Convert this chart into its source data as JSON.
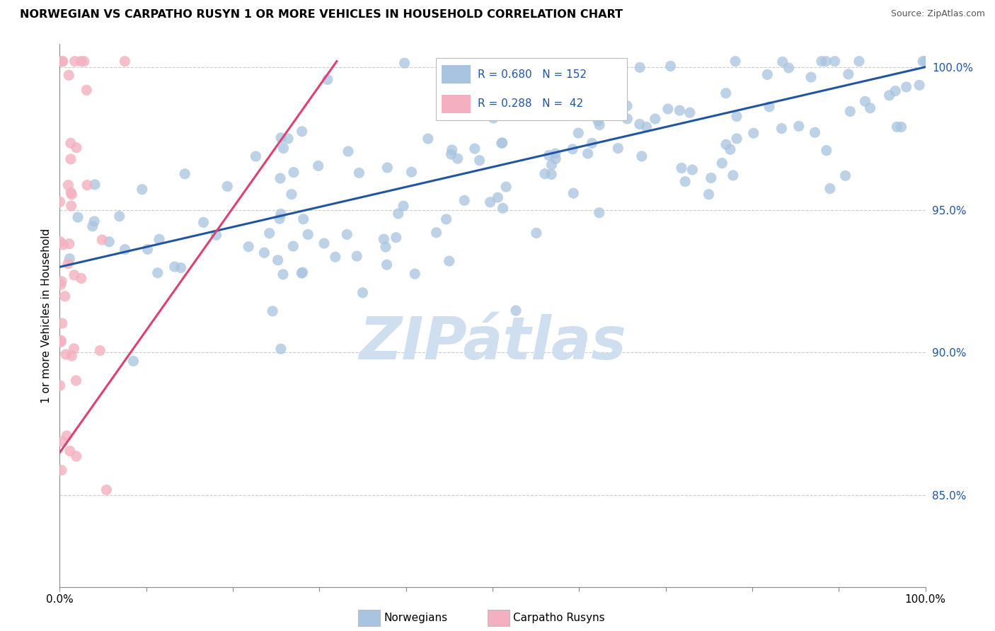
{
  "title": "NORWEGIAN VS CARPATHO RUSYN 1 OR MORE VEHICLES IN HOUSEHOLD CORRELATION CHART",
  "source": "Source: ZipAtlas.com",
  "ylabel": "1 or more Vehicles in Household",
  "ylabel_right_ticks": [
    "100.0%",
    "95.0%",
    "90.0%",
    "85.0%"
  ],
  "ytick_values": [
    1.0,
    0.95,
    0.9,
    0.85
  ],
  "xlim": [
    0.0,
    1.0
  ],
  "ylim": [
    0.818,
    1.008
  ],
  "legend_blue_r": "R = 0.680",
  "legend_blue_n": "N = 152",
  "legend_pink_r": "R = 0.288",
  "legend_pink_n": "N =  42",
  "legend_blue_label": "Norwegians",
  "legend_pink_label": "Carpatho Rusyns",
  "blue_color": "#a8c4e0",
  "pink_color": "#f4b0c0",
  "blue_line_color": "#2255a0",
  "pink_line_color": "#e04070",
  "watermark": "ZIPátlas",
  "watermark_color": "#d0dff0",
  "dot_size": 120,
  "blue_line_x0": 0.0,
  "blue_line_y0": 0.93,
  "blue_line_x1": 1.0,
  "blue_line_y1": 1.0,
  "pink_line_x0": 0.0,
  "pink_line_x1": 0.32,
  "pink_line_y0": 0.865,
  "pink_line_y1": 1.002
}
